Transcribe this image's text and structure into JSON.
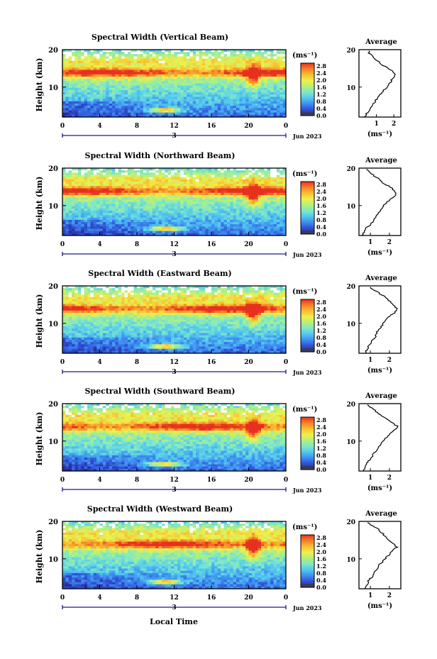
{
  "figure": {
    "xlabel": "Local Time",
    "date_label": "Jun 2023",
    "day_marker": "3",
    "units_label": "(ms⁻¹)",
    "average_title": "Average",
    "colorbar_ticks": [
      "2.8",
      "2.4",
      "2.0",
      "1.6",
      "1.2",
      "0.8",
      "0.4",
      "0.0"
    ],
    "y_ticks": [
      "20",
      "10"
    ],
    "ylabel": "Height (km)",
    "x_ticks": [
      "0",
      "4",
      "8",
      "12",
      "16",
      "20",
      "0"
    ]
  },
  "colorscale": {
    "name": "jet",
    "stops": [
      "#2a2a8a",
      "#2f4fd6",
      "#3e8ef0",
      "#52c8f0",
      "#7fe8c8",
      "#b4f07a",
      "#f0f04a",
      "#f8c030",
      "#f88028",
      "#e83020"
    ]
  },
  "chart_data": [
    {
      "type": "heatmap",
      "title": "Spectral Width (Vertical Beam)",
      "x_range_hours": [
        0,
        24
      ],
      "y_range_km": [
        2,
        20
      ],
      "color_range": [
        0.0,
        3.0
      ],
      "ylabel": "Height (km)",
      "average_profile": {
        "title": "Average",
        "xlabel": "(ms⁻¹)",
        "x_ticks": [
          "1",
          "2"
        ],
        "heights_km": [
          2,
          4,
          6,
          8,
          10,
          12,
          13,
          14,
          16,
          18,
          19,
          20
        ],
        "values": [
          0.3,
          0.6,
          0.9,
          1.2,
          1.6,
          1.9,
          2.1,
          2.0,
          1.3,
          0.8,
          0.6,
          0.5
        ],
        "xlim": [
          0,
          2.4
        ]
      }
    },
    {
      "type": "heatmap",
      "title": "Spectral Width (Northward Beam)",
      "x_range_hours": [
        0,
        24
      ],
      "y_range_km": [
        2,
        20
      ],
      "color_range": [
        0.0,
        3.0
      ],
      "ylabel": "Height (km)",
      "average_profile": {
        "title": "Average",
        "xlabel": "(ms⁻¹)",
        "x_ticks": [
          "1",
          "2"
        ],
        "heights_km": [
          2,
          4,
          6,
          8,
          10,
          12,
          13,
          14,
          16,
          18,
          19,
          20
        ],
        "values": [
          0.6,
          0.8,
          1.2,
          1.4,
          1.7,
          2.1,
          2.4,
          2.3,
          1.7,
          1.2,
          0.9,
          0.8
        ],
        "xlim": [
          0.4,
          2.6
        ]
      }
    },
    {
      "type": "heatmap",
      "title": "Spectral Width (Eastward Beam)",
      "x_range_hours": [
        0,
        24
      ],
      "y_range_km": [
        2,
        20
      ],
      "color_range": [
        0.0,
        3.0
      ],
      "ylabel": "Height (km)",
      "average_profile": {
        "title": "Average",
        "xlabel": "(ms⁻¹)",
        "x_ticks": [
          "1",
          "2"
        ],
        "heights_km": [
          2,
          4,
          6,
          8,
          10,
          12,
          13,
          14,
          16,
          18,
          19,
          20
        ],
        "values": [
          0.7,
          0.9,
          1.2,
          1.4,
          1.7,
          2.0,
          2.3,
          2.4,
          2.0,
          1.5,
          1.1,
          0.9
        ],
        "xlim": [
          0.4,
          2.6
        ]
      }
    },
    {
      "type": "heatmap",
      "title": "Spectral Width (Southward Beam)",
      "x_range_hours": [
        0,
        24
      ],
      "y_range_km": [
        2,
        20
      ],
      "color_range": [
        0.0,
        3.0
      ],
      "ylabel": "Height (km)",
      "average_profile": {
        "title": "Average",
        "xlabel": "(ms⁻¹)",
        "x_ticks": [
          "1",
          "2"
        ],
        "heights_km": [
          2,
          4,
          6,
          8,
          10,
          12,
          13,
          14,
          16,
          18,
          19,
          20
        ],
        "values": [
          0.6,
          0.8,
          1.1,
          1.4,
          1.7,
          2.0,
          2.3,
          2.4,
          1.8,
          1.3,
          1.0,
          0.8
        ],
        "xlim": [
          0.4,
          2.6
        ]
      }
    },
    {
      "type": "heatmap",
      "title": "Spectral Width (Westward Beam)",
      "x_range_hours": [
        0,
        24
      ],
      "y_range_km": [
        2,
        20
      ],
      "color_range": [
        0.0,
        3.0
      ],
      "ylabel": "Height (km)",
      "average_profile": {
        "title": "Average",
        "xlabel": "(ms⁻¹)",
        "x_ticks": [
          "1",
          "2"
        ],
        "heights_km": [
          2,
          4,
          6,
          8,
          10,
          12,
          13,
          14,
          16,
          18,
          19,
          20
        ],
        "values": [
          0.7,
          0.9,
          1.2,
          1.4,
          1.8,
          2.1,
          2.4,
          2.2,
          1.8,
          1.4,
          1.0,
          0.8
        ],
        "xlim": [
          0.4,
          2.6
        ]
      }
    }
  ]
}
